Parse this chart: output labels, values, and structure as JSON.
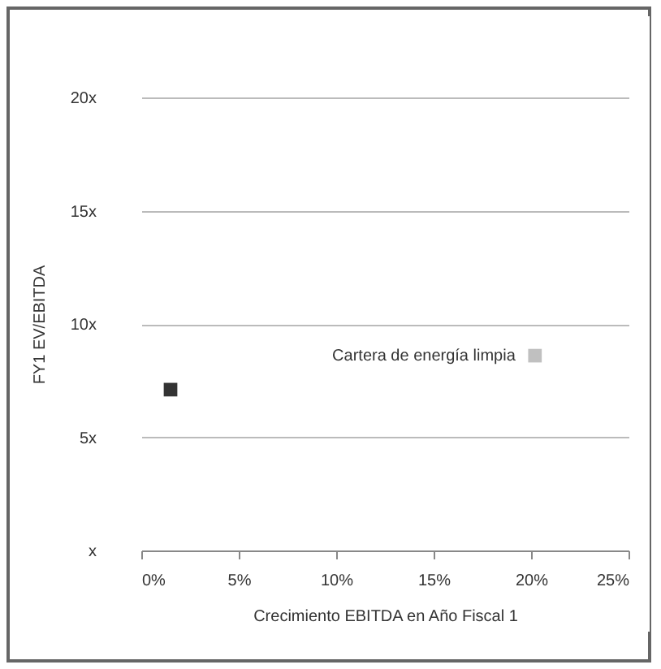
{
  "chart_data": {
    "type": "scatter",
    "xlabel": "Crecimiento EBITDA en Año Fiscal 1",
    "ylabel": "FY1 EV/EBITDA",
    "xlim": [
      0,
      25
    ],
    "xticks": [
      {
        "value": 0,
        "label": "0%"
      },
      {
        "value": 5,
        "label": "5%"
      },
      {
        "value": 10,
        "label": "10%"
      },
      {
        "value": 15,
        "label": "15%"
      },
      {
        "value": 20,
        "label": "20%"
      },
      {
        "value": 25,
        "label": "25%"
      }
    ],
    "ylim": [
      0,
      20
    ],
    "yticks": [
      {
        "value": 0,
        "label": "x"
      },
      {
        "value": 5,
        "label": "5x"
      },
      {
        "value": 10,
        "label": "10x"
      },
      {
        "value": 15,
        "label": "15x"
      },
      {
        "value": 20,
        "label": "20x"
      }
    ],
    "grid": "y",
    "marker": "square",
    "series": [
      {
        "color": "#333333",
        "x": [
          1.5
        ],
        "values": [
          7.1
        ]
      },
      {
        "name": "Cartera de energía limpia",
        "color": "#c0c0c0",
        "x": [
          20.2
        ],
        "values": [
          8.6
        ]
      }
    ]
  }
}
